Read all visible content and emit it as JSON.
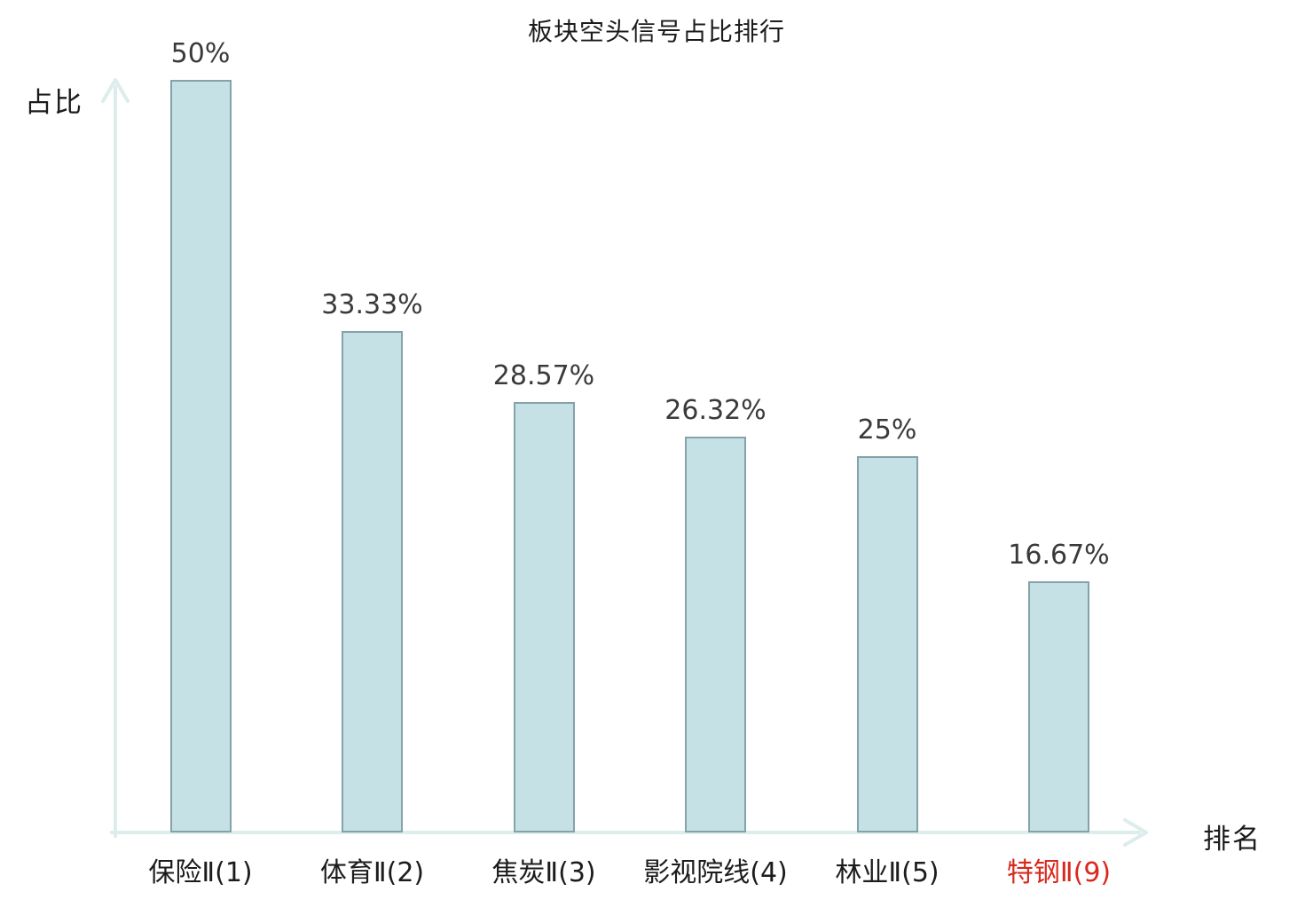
{
  "chart_data": {
    "type": "bar",
    "title": "板块空头信号占比排行",
    "xlabel": "排名",
    "ylabel": "占比",
    "categories": [
      "保险Ⅱ(1)",
      "体育Ⅱ(2)",
      "焦炭Ⅱ(3)",
      "影视院线(4)",
      "林业Ⅱ(5)",
      "特钢Ⅱ(9)"
    ],
    "values": [
      50,
      33.33,
      28.57,
      26.32,
      25,
      16.67
    ],
    "value_labels": [
      "50%",
      "33.33%",
      "28.57%",
      "26.32%",
      "25%",
      "16.67%"
    ],
    "ylim": [
      0,
      50
    ],
    "grid": false,
    "legend": "none",
    "axis_ticks": "none",
    "highlight_index": 5,
    "colors": {
      "bar_fill": "#c5e1e5",
      "bar_border": "#84a2aa",
      "axis": "#dcedeb",
      "value_label": "#3a3a3a",
      "category_label": "#1c1c1c",
      "highlight_category": "#d9281c",
      "background": "#ffffff"
    }
  }
}
